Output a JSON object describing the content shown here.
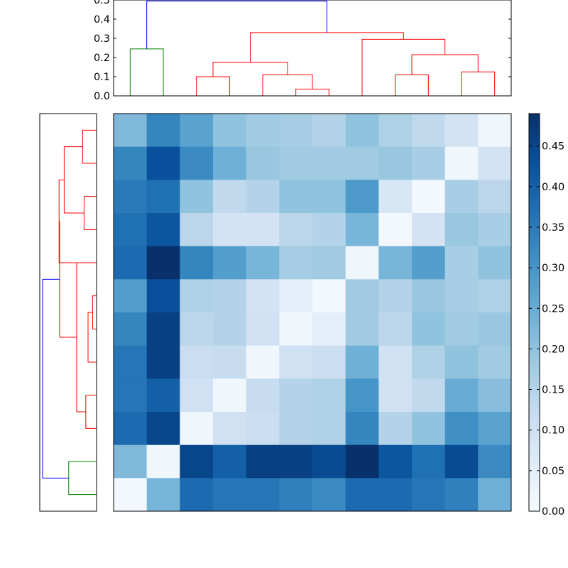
{
  "chart_data": {
    "type": "heatmap",
    "title": "",
    "xlabel": "",
    "ylabel": "",
    "matrix": [
      [
        0.22,
        0.33,
        0.27,
        0.2,
        0.18,
        0.17,
        0.15,
        0.2,
        0.16,
        0.13,
        0.09,
        0.02
      ],
      [
        0.33,
        0.43,
        0.32,
        0.24,
        0.19,
        0.18,
        0.18,
        0.18,
        0.19,
        0.17,
        0.02,
        0.09
      ],
      [
        0.35,
        0.37,
        0.2,
        0.13,
        0.15,
        0.2,
        0.2,
        0.29,
        0.08,
        0.01,
        0.17,
        0.14
      ],
      [
        0.37,
        0.42,
        0.14,
        0.09,
        0.09,
        0.14,
        0.15,
        0.23,
        0.01,
        0.09,
        0.19,
        0.17
      ],
      [
        0.38,
        0.49,
        0.33,
        0.28,
        0.23,
        0.17,
        0.18,
        0.02,
        0.23,
        0.28,
        0.17,
        0.2
      ],
      [
        0.28,
        0.43,
        0.16,
        0.15,
        0.09,
        0.05,
        0.01,
        0.18,
        0.15,
        0.19,
        0.17,
        0.16
      ],
      [
        0.33,
        0.46,
        0.14,
        0.15,
        0.1,
        0.02,
        0.05,
        0.18,
        0.14,
        0.2,
        0.18,
        0.19
      ],
      [
        0.36,
        0.46,
        0.11,
        0.12,
        0.02,
        0.1,
        0.11,
        0.24,
        0.1,
        0.16,
        0.2,
        0.18
      ],
      [
        0.36,
        0.4,
        0.1,
        0.02,
        0.12,
        0.15,
        0.16,
        0.3,
        0.1,
        0.13,
        0.25,
        0.21
      ],
      [
        0.38,
        0.45,
        0.02,
        0.1,
        0.11,
        0.15,
        0.16,
        0.33,
        0.15,
        0.2,
        0.31,
        0.27
      ],
      [
        0.22,
        0.02,
        0.45,
        0.4,
        0.46,
        0.46,
        0.44,
        0.49,
        0.42,
        0.37,
        0.44,
        0.32
      ],
      [
        0.01,
        0.23,
        0.38,
        0.36,
        0.36,
        0.34,
        0.32,
        0.38,
        0.38,
        0.36,
        0.34,
        0.24
      ]
    ],
    "colorbar": {
      "colormap": "Blues",
      "range": [
        0,
        0.49
      ],
      "ticks": [
        "0.00",
        "0.05",
        "0.10",
        "0.15",
        "0.20",
        "0.25",
        "0.30",
        "0.35",
        "0.40",
        "0.45"
      ]
    },
    "top_dendrogram": {
      "yticks": [
        "0.0",
        "0.1",
        "0.2",
        "0.3",
        "0.4",
        "0.5"
      ],
      "ylim": [
        0,
        0.5
      ],
      "links": [
        {
          "left": 0.5,
          "right": 1.5,
          "height": 0.245,
          "color": "#008000"
        },
        {
          "left": 2.5,
          "right": 3.5,
          "height": 0.1,
          "color": "#ff0000"
        },
        {
          "left": 5.5,
          "right": 6.5,
          "height": 0.035,
          "color": "#ff0000"
        },
        {
          "left": 4.5,
          "right": 6.0,
          "height": 0.11,
          "color": "#ff0000"
        },
        {
          "left": 3.0,
          "right": 5.25,
          "height": 0.175,
          "color": "#ff0000"
        },
        {
          "left": 8.5,
          "right": 9.5,
          "height": 0.11,
          "color": "#ff0000"
        },
        {
          "left": 10.5,
          "right": 11.5,
          "height": 0.125,
          "color": "#ff0000"
        },
        {
          "left": 9.0,
          "right": 11.0,
          "height": 0.215,
          "color": "#ff0000"
        },
        {
          "left": 7.5,
          "right": 10.0,
          "height": 0.295,
          "color": "#ff0000"
        },
        {
          "left": 4.125,
          "right": 8.75,
          "height": 0.33,
          "color": "#ff0000"
        },
        {
          "left": 1.0,
          "right": 6.4375,
          "height": 0.495,
          "color": "#0000ff"
        }
      ]
    },
    "left_dendrogram": {
      "links": [
        {
          "top": 0.5,
          "bottom": 1.5,
          "height": 0.245,
          "color": "#ff0000"
        },
        {
          "top": 2.5,
          "bottom": 3.5,
          "height": 0.22,
          "color": "#ff0000"
        },
        {
          "top": 1.0,
          "bottom": 3.0,
          "height": 0.57,
          "color": "#ff0000"
        },
        {
          "top": 2.0,
          "bottom": 4.5,
          "height": 0.66,
          "color": "#ff0000"
        },
        {
          "top": 5.5,
          "bottom": 6.5,
          "height": 0.07,
          "color": "#ff0000"
        },
        {
          "top": 6.0,
          "bottom": 7.5,
          "height": 0.15,
          "color": "#ff0000"
        },
        {
          "top": 8.5,
          "bottom": 9.5,
          "height": 0.19,
          "color": "#ff0000"
        },
        {
          "top": 4.5,
          "bottom": 9.0,
          "height": 0.35,
          "color": "#ff0000"
        },
        {
          "top": 3.25,
          "bottom": 6.75,
          "height": 0.65,
          "color": "#ff0000"
        },
        {
          "top": 10.5,
          "bottom": 11.5,
          "height": 0.49,
          "color": "#008000"
        },
        {
          "top": 5.0,
          "bottom": 11.0,
          "height": 0.95,
          "color": "#0000ff"
        }
      ]
    }
  }
}
